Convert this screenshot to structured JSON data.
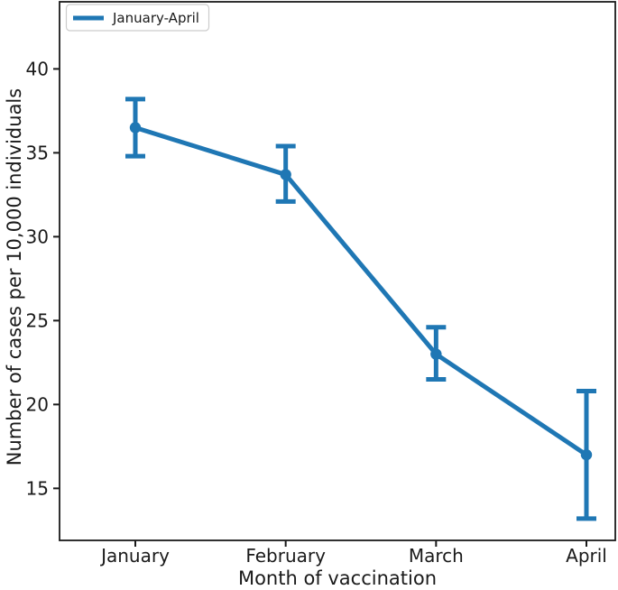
{
  "figure": {
    "background": "#ffffff",
    "axis_color": "#1a1a1a"
  },
  "chart_data": {
    "type": "line",
    "title": "",
    "xlabel": "Month of vaccination",
    "ylabel": "Number of cases per 10,000 individuals",
    "categories": [
      "January",
      "February",
      "March",
      "April"
    ],
    "series": [
      {
        "name": "January-April",
        "values": [
          36.5,
          33.7,
          23.0,
          17.0
        ],
        "err_low": [
          34.8,
          32.1,
          21.5,
          13.2
        ],
        "err_high": [
          38.2,
          35.4,
          24.6,
          20.8
        ],
        "color": "#1f77b4"
      }
    ],
    "yticks": [
      15,
      20,
      25,
      30,
      35,
      40
    ],
    "ylim": [
      11.9,
      44.0
    ],
    "grid": false,
    "legend": {
      "position": "upper-left",
      "border_color": "#cccccc",
      "background": "#ffffff"
    }
  }
}
